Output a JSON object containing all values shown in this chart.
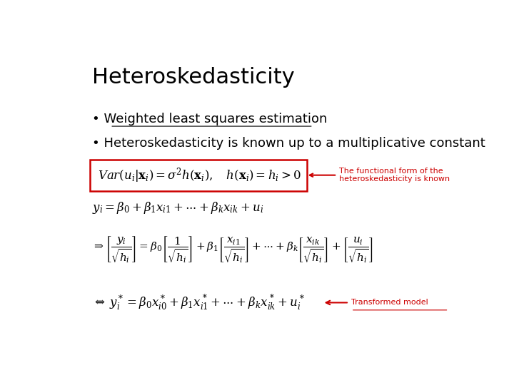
{
  "title": "Heteroskedasticity",
  "bullet1": "Weighted least squares estimation",
  "bullet2": "Heteroskedasticity is known up to a multiplicative constant",
  "eq1_box_color": "#cc0000",
  "arrow1_label": "The functional form of the\nheteroskedasticity is known",
  "arrow2_label": "Transformed model",
  "bg_color": "#ffffff",
  "title_color": "#000000",
  "text_color": "#000000",
  "arrow_color": "#cc0000",
  "title_fontsize": 22,
  "bullet_fontsize": 13,
  "eq_fontsize": 12,
  "eq3_fontsize": 11,
  "annotation_fontsize": 8
}
